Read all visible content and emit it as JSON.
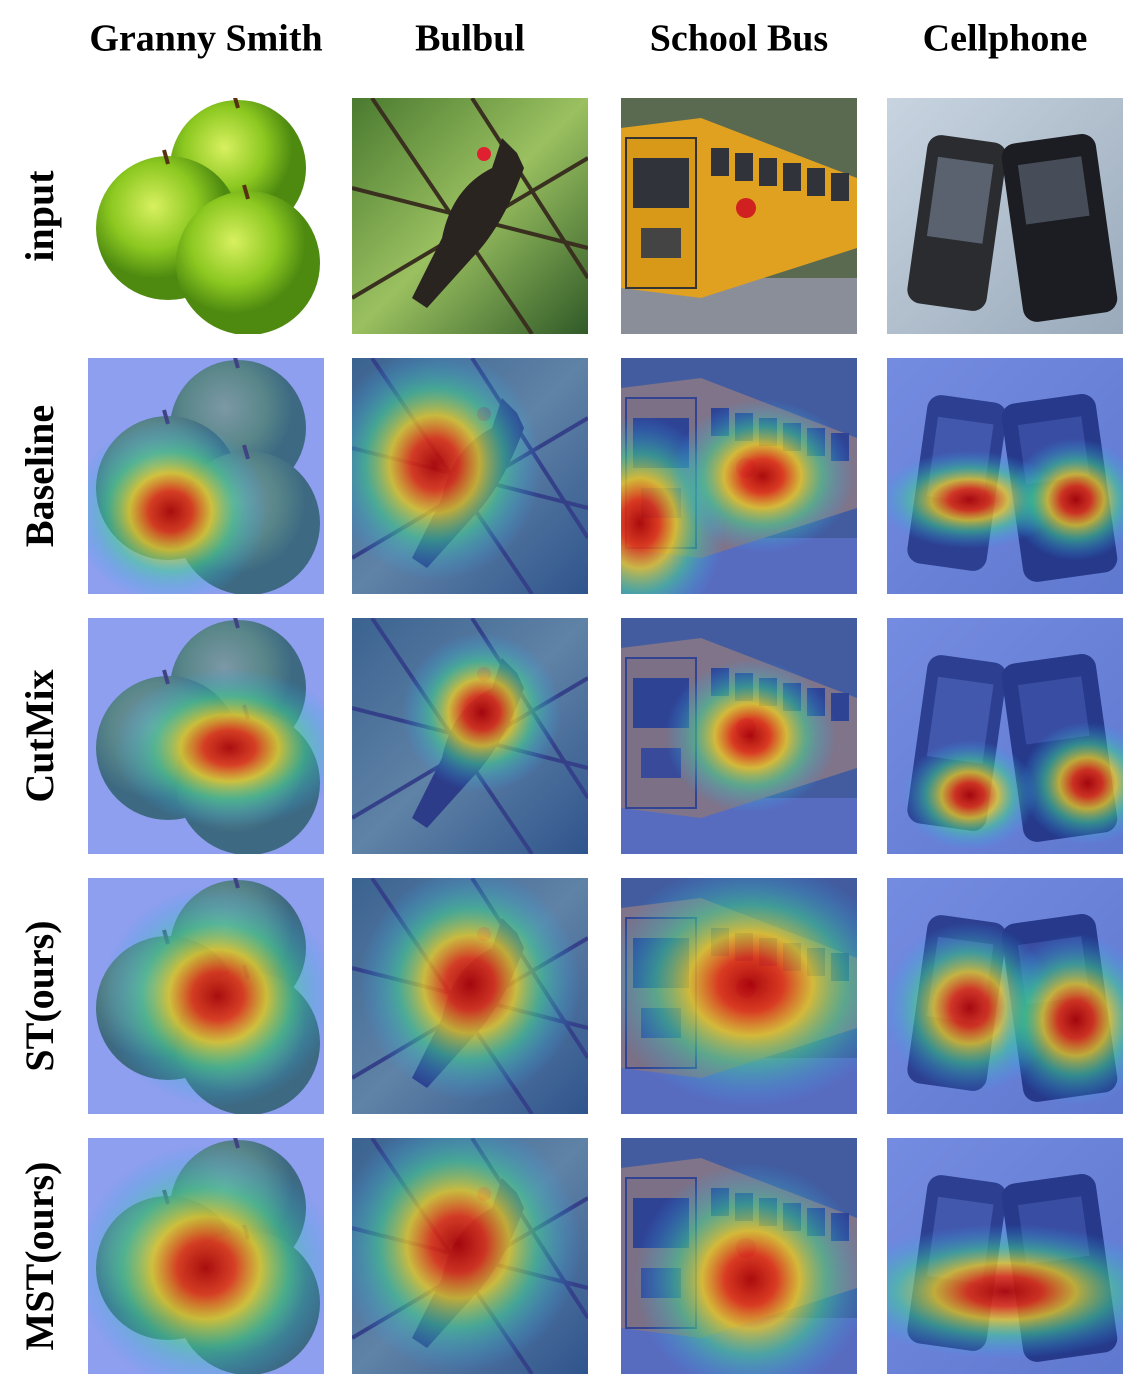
{
  "figure": {
    "columns": [
      "Granny Smith",
      "Bulbul",
      "School Bus",
      "Cellphone"
    ],
    "rows": [
      "input",
      "Baseline",
      "CutMix",
      "ST(ours)",
      "MST(ours)"
    ]
  }
}
